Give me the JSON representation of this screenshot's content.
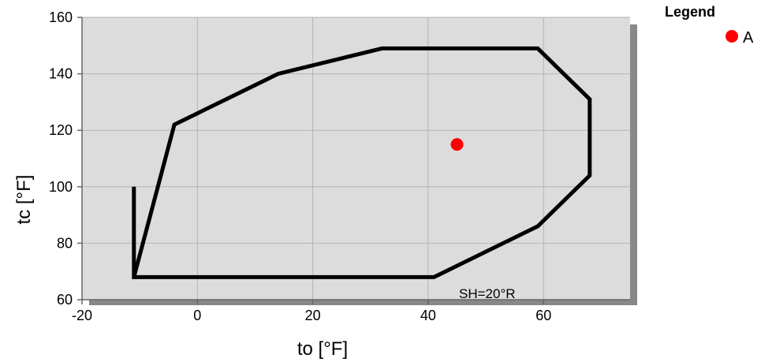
{
  "chart_data": {
    "type": "scatter",
    "xlabel": "to [°F]",
    "ylabel": "tc [°F]",
    "xlim": [
      -20,
      75
    ],
    "ylim": [
      60,
      160
    ],
    "x_ticks": [
      -20,
      0,
      20,
      40,
      60
    ],
    "y_ticks": [
      60,
      80,
      100,
      120,
      140,
      160
    ],
    "grid": true,
    "annotation": "SH=20°R",
    "envelope": {
      "x": [
        -11,
        -4,
        14,
        32,
        59,
        68,
        68,
        59,
        41,
        -11,
        -11
      ],
      "y": [
        68,
        122,
        140,
        149,
        149,
        131,
        104,
        86,
        68,
        68,
        100
      ],
      "color": "#000000"
    },
    "series": [
      {
        "name": "A",
        "x": [
          45
        ],
        "y": [
          115
        ],
        "color": "#ff0000"
      }
    ],
    "legend": {
      "title": "Legend",
      "position": "top-right"
    }
  }
}
